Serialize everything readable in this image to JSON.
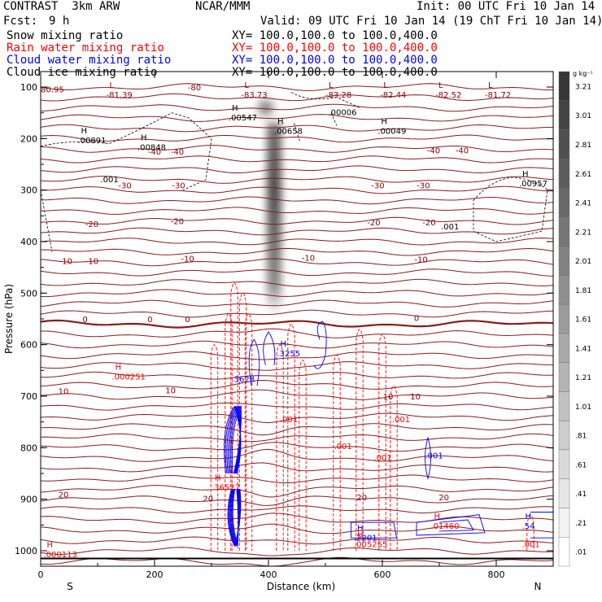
{
  "header": {
    "model": "CONTRAST  3km ARW",
    "org": "NCAR/MMM",
    "init": "Init: 00 UTC Fri 10 Jan 14",
    "fcst_label": "Fcst:",
    "fcst_value": "9 h",
    "valid": "Valid: 09 UTC Fri 10 Jan 14 (19 ChT Fri 10 Jan 14)"
  },
  "fields": [
    {
      "name": "Snow mixing ratio",
      "xy": "XY= 100.0,100.0 to 100.0,400.0",
      "color": "#000000"
    },
    {
      "name": "Rain water mixing ratio",
      "xy": "XY= 100.0,100.0 to 100.0,400.0",
      "color": "#ff0000"
    },
    {
      "name": "Cloud water mixing ratio",
      "xy": "XY= 100.0,100.0 to 100.0,400.0",
      "color": "#0000ff"
    },
    {
      "name": "Cloud ice mixing ratio",
      "xy": "XY= 100.0,100.0 to 100.0,400.0",
      "color": "#000000"
    }
  ],
  "colorbar": {
    "unit": "g kg⁻¹",
    "labels": [
      "3.21",
      "3.01",
      "2.81",
      "2.61",
      "2.41",
      "2.21",
      "2.01",
      "1.81",
      "1.61",
      "1.41",
      "1.21",
      "1.01",
      ".81",
      ".61",
      ".41",
      ".21",
      ".01"
    ]
  },
  "chart_data": {
    "type": "contour",
    "xlabel": "Distance (km)",
    "ylabel": "Pressure (hPa)",
    "xlim": [
      0,
      900
    ],
    "ylim": [
      1030,
      70
    ],
    "x_ticks": [
      0,
      200,
      400,
      600,
      800
    ],
    "y_ticks": [
      100,
      200,
      300,
      400,
      500,
      600,
      700,
      800,
      900,
      1000
    ],
    "x_endpoints": {
      "left": "S",
      "right": "N"
    },
    "shading": {
      "field": "Cloud ice mixing ratio",
      "center_x_km": 410,
      "plume_top_hPa": 120,
      "plume_bottom_hPa": 540,
      "max": 3.21
    },
    "temperature_contours_C": [
      -80,
      -40,
      -30,
      -20,
      -10,
      0,
      10,
      20
    ],
    "contour_labels": [
      {
        "text": "-80",
        "x": 270,
        "p": 100,
        "color": "#8b0000"
      },
      {
        "text": "-40",
        "x": 200,
        "p": 225,
        "color": "#8b0000"
      },
      {
        "text": "-40",
        "x": 240,
        "p": 225,
        "color": "#8b0000"
      },
      {
        "text": "-40",
        "x": 690,
        "p": 222,
        "color": "#8b0000"
      },
      {
        "text": "-40",
        "x": 740,
        "p": 222,
        "color": "#8b0000"
      },
      {
        "text": "-30",
        "x": 148,
        "p": 290,
        "color": "#8b0000"
      },
      {
        "text": "-30",
        "x": 242,
        "p": 290,
        "color": "#8b0000"
      },
      {
        "text": "-30",
        "x": 592,
        "p": 290,
        "color": "#8b0000"
      },
      {
        "text": "-30",
        "x": 672,
        "p": 290,
        "color": "#8b0000"
      },
      {
        "text": "-20",
        "x": 90,
        "p": 365,
        "color": "#8b0000"
      },
      {
        "text": "-20",
        "x": 240,
        "p": 360,
        "color": "#8b0000"
      },
      {
        "text": "-20",
        "x": 585,
        "p": 362,
        "color": "#8b0000"
      },
      {
        "text": "-20",
        "x": 682,
        "p": 362,
        "color": "#8b0000"
      },
      {
        "text": "-10",
        "x": 44,
        "p": 437,
        "color": "#8b0000"
      },
      {
        "text": "-10",
        "x": 90,
        "p": 437,
        "color": "#8b0000"
      },
      {
        "text": "-10",
        "x": 258,
        "p": 432,
        "color": "#8b0000"
      },
      {
        "text": "-10",
        "x": 470,
        "p": 431,
        "color": "#8b0000"
      },
      {
        "text": "-10",
        "x": 668,
        "p": 434,
        "color": "#8b0000"
      },
      {
        "text": "0",
        "x": 78,
        "p": 550,
        "color": "#8b0000"
      },
      {
        "text": "0",
        "x": 192,
        "p": 550,
        "color": "#8b0000"
      },
      {
        "text": "0",
        "x": 258,
        "p": 550,
        "color": "#8b0000"
      },
      {
        "text": "0",
        "x": 660,
        "p": 548,
        "color": "#8b0000"
      },
      {
        "text": "10",
        "x": 40,
        "p": 690,
        "color": "#8b0000"
      },
      {
        "text": "10",
        "x": 228,
        "p": 688,
        "color": "#8b0000"
      },
      {
        "text": "10",
        "x": 610,
        "p": 700,
        "color": "#8b0000"
      },
      {
        "text": "10",
        "x": 658,
        "p": 700,
        "color": "#8b0000"
      },
      {
        "text": "20",
        "x": 40,
        "p": 890,
        "color": "#8b0000"
      },
      {
        "text": "20",
        "x": 294,
        "p": 898,
        "color": "#8b0000"
      },
      {
        "text": "20",
        "x": 564,
        "p": 896,
        "color": "#8b0000"
      },
      {
        "text": "20",
        "x": 708,
        "p": 896,
        "color": "#8b0000"
      }
    ],
    "extrema_labels": [
      {
        "mark": "L",
        "value": "-81.39",
        "x": 115,
        "p": 108,
        "color": "#8b0000"
      },
      {
        "mark": "L",
        "value": "-83.73",
        "x": 352,
        "p": 108,
        "color": "#8b0000"
      },
      {
        "mark": "L",
        "value": "-83.28",
        "x": 500,
        "p": 108,
        "color": "#8b0000"
      },
      {
        "mark": "L",
        "value": "-82.44",
        "x": 596,
        "p": 108,
        "color": "#8b0000"
      },
      {
        "mark": "L",
        "value": "-82.52",
        "x": 693,
        "p": 108,
        "color": "#8b0000"
      },
      {
        "mark": "L",
        "value": "-81.72",
        "x": 780,
        "p": 108,
        "color": "#8b0000"
      },
      {
        "mark": "",
        "value": "-80.95",
        "x": -5,
        "p": 98,
        "color": "#8b0000"
      },
      {
        "mark": "H",
        "value": ".00547",
        "x": 330,
        "p": 152,
        "color": "#000000"
      },
      {
        "mark": "H",
        "value": ".00658",
        "x": 410,
        "p": 178,
        "color": "#000000"
      },
      {
        "mark": "H",
        "value": ".00049",
        "x": 592,
        "p": 178,
        "color": "#000000"
      },
      {
        "mark": "",
        "value": ".00006",
        "x": 505,
        "p": 142,
        "color": "#000000"
      },
      {
        "mark": "H",
        "value": ".00891",
        "x": 65,
        "p": 196,
        "color": "#000000"
      },
      {
        "mark": "H",
        "value": ".00848",
        "x": 170,
        "p": 210,
        "color": "#000000"
      },
      {
        "mark": "",
        "value": ".001",
        "x": 105,
        "p": 272,
        "color": "#000000"
      },
      {
        "mark": "H",
        "value": ".00957",
        "x": 840,
        "p": 280,
        "color": "#000000"
      },
      {
        "mark": "",
        "value": ".001",
        "x": 703,
        "p": 364,
        "color": "#000000"
      },
      {
        "mark": "H",
        "value": ".000251",
        "x": 125,
        "p": 655,
        "color": "#ff0000"
      },
      {
        "mark": "H",
        "value": ".3255",
        "x": 415,
        "p": 610,
        "color": "#0000ff"
      },
      {
        "mark": "",
        "value": ".3628",
        "x": 335,
        "p": 660,
        "color": "#0000ff"
      },
      {
        "mark": "",
        "value": ".001",
        "x": 420,
        "p": 738,
        "color": "#ff0000"
      },
      {
        "mark": "",
        "value": ".001",
        "x": 515,
        "p": 790,
        "color": "#ff0000"
      },
      {
        "mark": "",
        "value": ".001",
        "x": 585,
        "p": 812,
        "color": "#ff0000"
      },
      {
        "mark": "",
        "value": ".001",
        "x": 617,
        "p": 738,
        "color": "#ff0000"
      },
      {
        "mark": "",
        "value": ".001",
        "x": 675,
        "p": 808,
        "color": "#0000ff"
      },
      {
        "mark": "H",
        "value": ".36527",
        "x": 300,
        "p": 870,
        "color": "#ff0000"
      },
      {
        "mark": "H",
        "value": ".2201",
        "x": 550,
        "p": 968,
        "color": "#0000ff"
      },
      {
        "mark": "H",
        "value": ".005255",
        "x": 550,
        "p": 980,
        "color": "#ff0000"
      },
      {
        "mark": "H",
        "value": ".01460",
        "x": 685,
        "p": 945,
        "color": "#ff0000"
      },
      {
        "mark": "H",
        "value": ".54",
        "x": 845,
        "p": 945,
        "color": "#0000ff"
      },
      {
        "mark": "",
        "value": ".001",
        "x": 845,
        "p": 980,
        "color": "#ff0000"
      },
      {
        "mark": "H",
        "value": ".000113",
        "x": 5,
        "p": 1000,
        "color": "#ff0000"
      }
    ]
  }
}
